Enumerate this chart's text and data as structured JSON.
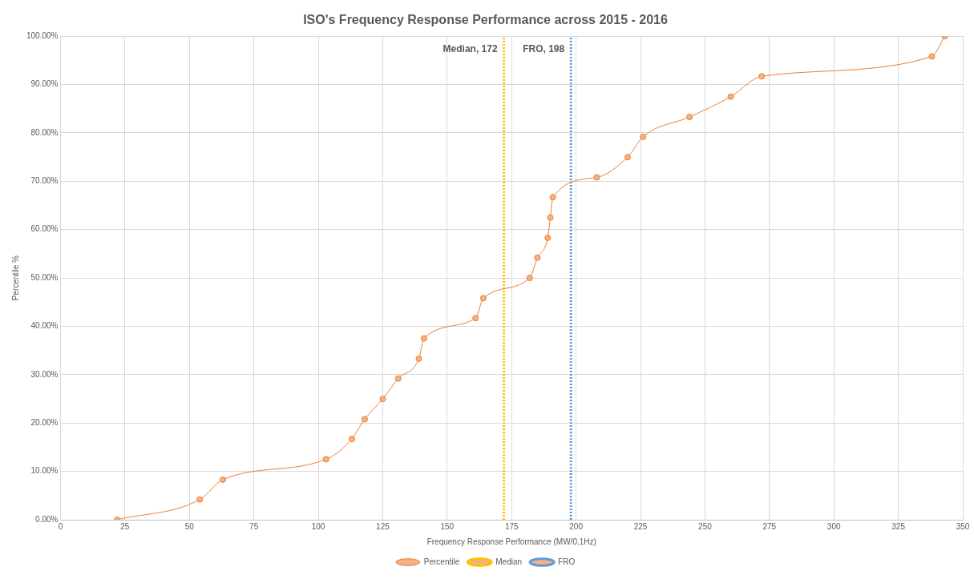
{
  "chart_data": {
    "type": "line",
    "title": "ISO's Frequency Response Performance across 2015 - 2016",
    "xlabel": "Frequency Response Performance (MW/0.1Hz)",
    "ylabel": "Percentile %",
    "series": [
      {
        "name": "Percentile",
        "color": "#ed7d31",
        "marker": "circle",
        "line_style": "solid",
        "x": [
          22,
          54,
          63,
          103,
          113,
          118,
          125,
          131,
          139,
          141,
          161,
          164,
          182,
          185,
          189,
          190,
          191,
          208,
          220,
          226,
          244,
          260,
          272,
          338,
          343
        ],
        "values": [
          0,
          4.2,
          8.3,
          12.5,
          16.7,
          20.8,
          25,
          29.2,
          33.3,
          37.5,
          41.7,
          45.8,
          50,
          54.2,
          58.3,
          62.5,
          66.7,
          70.8,
          75,
          79.2,
          83.3,
          87.5,
          91.7,
          95.8,
          100
        ]
      },
      {
        "name": "Median",
        "color": "#ffc000",
        "marker": "none",
        "line_style": "dotted",
        "x": [
          172,
          172
        ],
        "values": [
          0,
          100
        ]
      },
      {
        "name": "FRO",
        "color": "#5b9bd5",
        "marker": "none",
        "line_style": "dotted",
        "x": [
          198,
          198
        ],
        "values": [
          0,
          100
        ]
      }
    ],
    "annotations": [
      {
        "text": "Median, 172",
        "x": 172,
        "y": 100
      },
      {
        "text": "FRO, 198",
        "x": 198,
        "y": 100
      }
    ],
    "xlim": [
      0,
      350
    ],
    "xticks": [
      0,
      25,
      50,
      75,
      100,
      125,
      150,
      175,
      200,
      225,
      250,
      275,
      300,
      325,
      350
    ],
    "ylim": [
      0,
      100
    ],
    "yticks": [
      {
        "value": 0,
        "label": "0.00%"
      },
      {
        "value": 10,
        "label": "10.00%"
      },
      {
        "value": 20,
        "label": "20.00%"
      },
      {
        "value": 30,
        "label": "30.00%"
      },
      {
        "value": 40,
        "label": "40.00%"
      },
      {
        "value": 50,
        "label": "50.00%"
      },
      {
        "value": 60,
        "label": "60.00%"
      },
      {
        "value": 70,
        "label": "70.00%"
      },
      {
        "value": 80,
        "label": "80.00%"
      },
      {
        "value": 90,
        "label": "90.00%"
      },
      {
        "value": 100,
        "label": "100.00%"
      }
    ],
    "grid": true,
    "legend": "bottom"
  }
}
